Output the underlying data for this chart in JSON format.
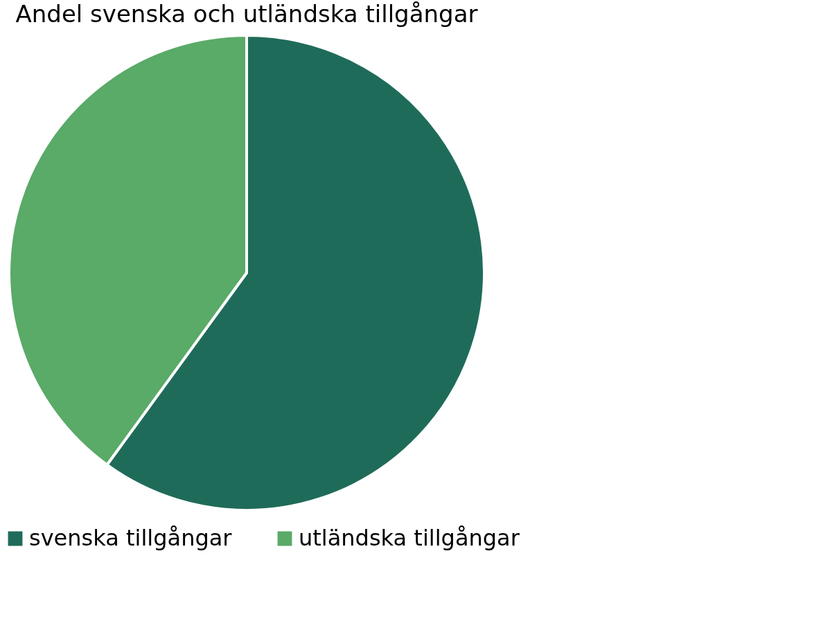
{
  "chart_data": {
    "type": "pie",
    "title": "Andel svenska och utländska tillgångar",
    "categories": [
      "svenska tillgångar",
      "utländska tillgångar"
    ],
    "values": [
      60,
      40
    ],
    "colors": [
      "#1f6b5a",
      "#5aaa68"
    ],
    "legend": "bottom"
  }
}
